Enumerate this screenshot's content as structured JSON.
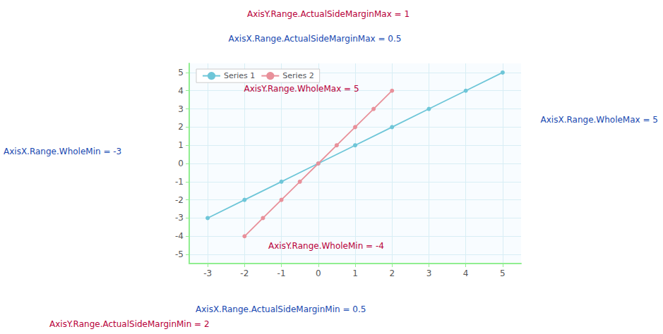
{
  "chart_data": {
    "type": "line",
    "series": [
      {
        "name": "Series 1",
        "color": "#6ec6d8",
        "marker": "circle",
        "x": [
          -3,
          -2,
          -1,
          0,
          1,
          2,
          3,
          4,
          5
        ],
        "values": [
          -3,
          -2,
          -1,
          0,
          1,
          2,
          3,
          4,
          5
        ]
      },
      {
        "name": "Series 2",
        "color": "#e8909a",
        "marker": "circle",
        "x": [
          -2,
          -1.5,
          -1,
          -0.5,
          0,
          0.5,
          1,
          1.5,
          2
        ],
        "values": [
          -4,
          -3,
          -2,
          -1,
          0,
          1,
          2,
          3,
          4
        ]
      }
    ],
    "xlim": [
      -3.5,
      5.5
    ],
    "ylim": [
      -5.5,
      5.5
    ],
    "xticks": [
      -3,
      -2,
      -1,
      0,
      1,
      2,
      3,
      4,
      5
    ],
    "yticks": [
      -5,
      -4,
      -3,
      -2,
      -1,
      0,
      1,
      2,
      3,
      4,
      5
    ],
    "grid": true,
    "legend": "upper left",
    "annotations": [
      {
        "text": "AxisY.Range.ActualSideMarginMax = 1",
        "color": "#b8003a"
      },
      {
        "text": "AxisX.Range.ActualSideMarginMax = 0.5",
        "color": "#1848b0"
      },
      {
        "text": "AxisY.Range.WholeMax = 5",
        "color": "#b8003a"
      },
      {
        "text": "AxisX.Range.WholeMax = 5",
        "color": "#1848b0"
      },
      {
        "text": "AxisX.Range.WholeMin = -3",
        "color": "#1848b0"
      },
      {
        "text": "AxisY.Range.WholeMin = -4",
        "color": "#b8003a"
      },
      {
        "text": "AxisX.Range.ActualSideMarginMin = 0.5",
        "color": "#1848b0"
      },
      {
        "text": "AxisY.Range.ActualSideMarginMin = 2",
        "color": "#b8003a"
      }
    ]
  }
}
